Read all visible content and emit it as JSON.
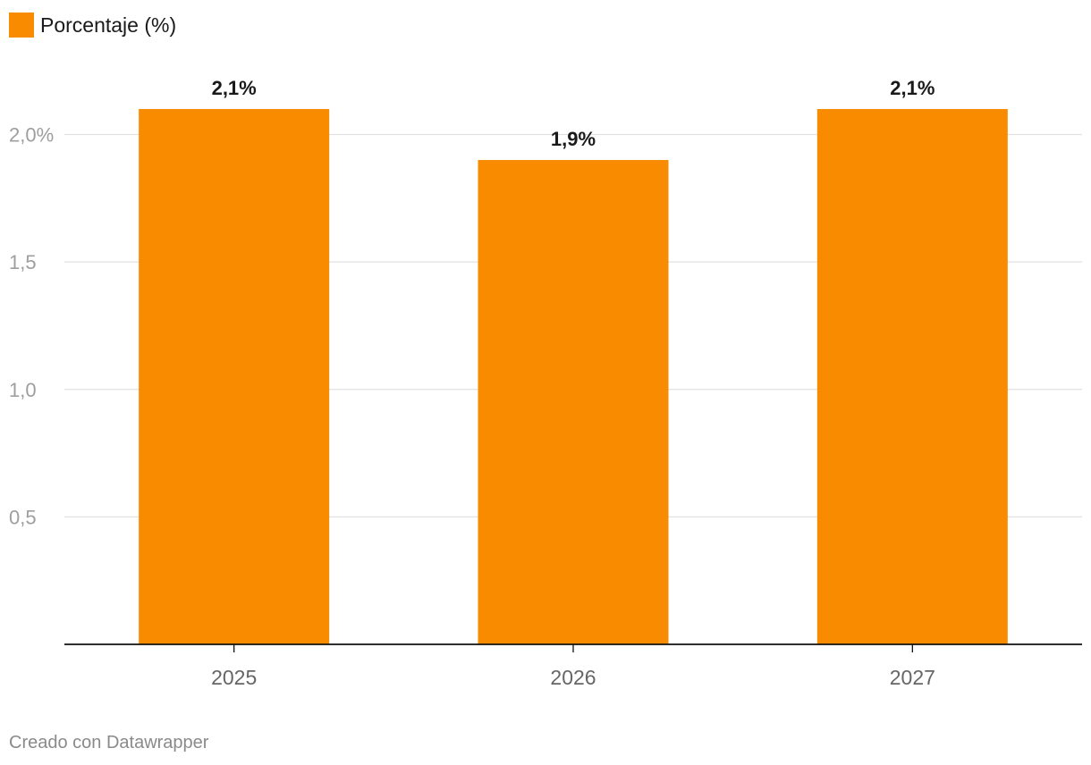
{
  "chart_data": {
    "type": "bar",
    "title": "",
    "xlabel": "",
    "ylabel": "",
    "categories": [
      "2025",
      "2026",
      "2027"
    ],
    "series": [
      {
        "name": "Porcentaje (%)",
        "values": [
          2.1,
          1.9,
          2.1
        ],
        "labels": [
          "2,1%",
          "1,9%",
          "2,1%"
        ],
        "color": "#f98b00"
      }
    ],
    "ylim": [
      0,
      2.1
    ],
    "yticks": [
      0.5,
      1.0,
      1.5,
      2.0
    ],
    "ytick_labels": [
      "0,5",
      "1,0",
      "1,5",
      "2,0%"
    ],
    "grid": true,
    "legend": "top-left"
  },
  "legend": {
    "label": "Porcentaje (%)",
    "color": "#f98b00"
  },
  "footer": {
    "credit": "Creado con Datawrapper"
  }
}
